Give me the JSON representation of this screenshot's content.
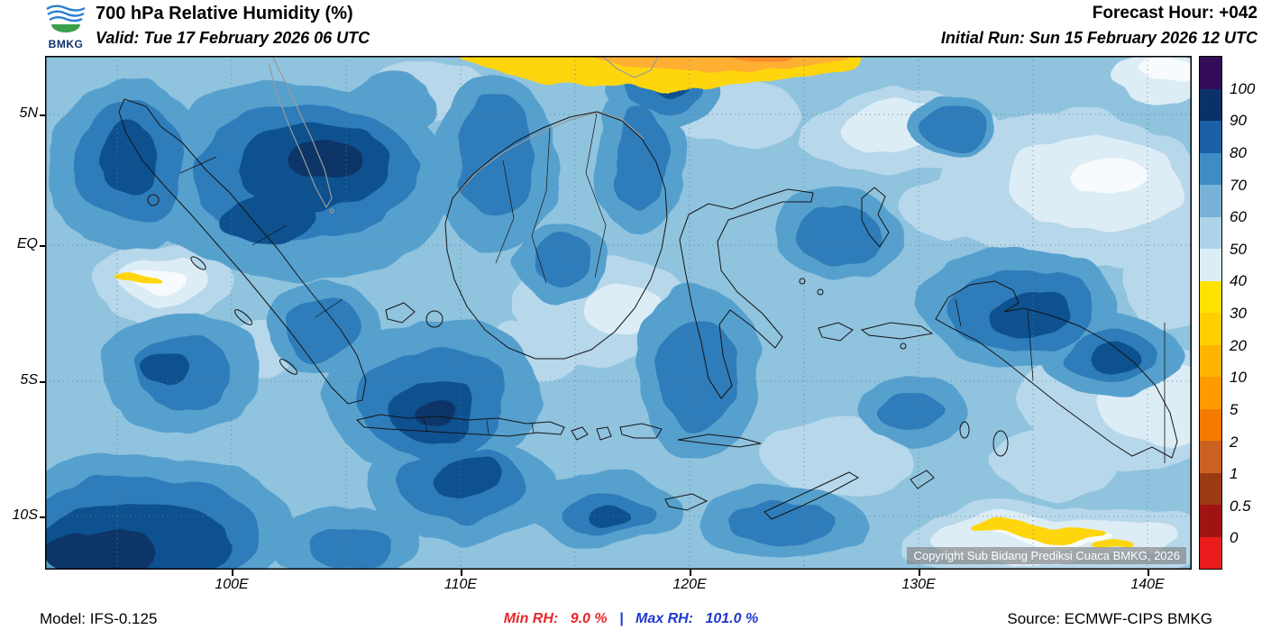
{
  "header": {
    "logo_text": "BMKG",
    "title": "700 hPa Relative Humidity (%)",
    "forecast_hour": "Forecast Hour: +042",
    "valid": "Valid: Tue 17 February 2026 06 UTC",
    "initial_run": "Initial Run: Sun 15 February 2026 12 UTC"
  },
  "map": {
    "lat_ticks": [
      "5N",
      "EQ",
      "5S",
      "10S"
    ],
    "lon_ticks": [
      "100E",
      "110E",
      "120E",
      "130E",
      "140E"
    ],
    "copyright": "Copyright Sub Bidang Prediksi Cuaca BMKG, 2026"
  },
  "colorbar": {
    "labels": [
      "100",
      "90",
      "80",
      "70",
      "60",
      "50",
      "40",
      "30",
      "20",
      "10",
      "5",
      "2",
      "1",
      "0.5",
      "0"
    ],
    "colors": [
      "#330d57",
      "#0a3168",
      "#1c5fa6",
      "#3f8bc4",
      "#79b2d8",
      "#aed2e8",
      "#dcedf6",
      "#ffe200",
      "#ffcf00",
      "#ffb400",
      "#ff9a00",
      "#f47b00",
      "#cb6120",
      "#9a3b14",
      "#a01313",
      "#e81c1c"
    ]
  },
  "footer": {
    "model": "Model: IFS-0.125",
    "min_label": "Min RH:",
    "min_value": "9.0 %",
    "separator": "|",
    "max_label": "Max RH:",
    "max_value": "101.0 %",
    "source": "Source: ECMWF-CIPS BMKG",
    "min_color": "#e8262c",
    "max_color": "#2038d0"
  },
  "chart_data": {
    "type": "heatmap",
    "title": "700 hPa Relative Humidity (%)",
    "units": "%",
    "colorbar_levels": [
      0,
      0.5,
      1,
      2,
      5,
      10,
      20,
      30,
      40,
      50,
      60,
      70,
      80,
      90,
      100
    ],
    "x_ticks": [
      "100E",
      "110E",
      "120E",
      "130E",
      "140E"
    ],
    "y_ticks": [
      "5N",
      "EQ",
      "5S",
      "10S"
    ],
    "lon_range_deg_east": [
      92,
      142
    ],
    "lat_range_deg": [
      -12,
      7
    ],
    "min_rh": 9.0,
    "max_rh": 101.0,
    "forecast_hour": 42,
    "valid_time": "Tue 17 February 2026 06 UTC",
    "initial_run": "Sun 15 February 2026 12 UTC",
    "model": "IFS-0.125",
    "source": "ECMWF-CIPS BMKG",
    "legend_position": "right",
    "grid": "dotted"
  }
}
